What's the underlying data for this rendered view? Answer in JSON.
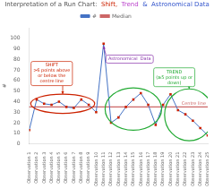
{
  "chart_data": {
    "type": "line",
    "title_parts": [
      {
        "text": "Interpretation of a Run Chart:  ",
        "color": "#555555"
      },
      {
        "text": "Shift,",
        "color": "#cc2200"
      },
      {
        "text": "  Trend",
        "color": "#bb44cc"
      },
      {
        "text": "  &  Astronomical Data",
        "color": "#3355cc"
      }
    ],
    "y_label": "#",
    "categories": [
      "Observation 1",
      "Observation 2",
      "Observation 3",
      "Observation 4",
      "Observation 5",
      "Observation 6",
      "Observation 7",
      "Observation 8",
      "Observation 9",
      "Observation 10",
      "Observation 11",
      "Observation 12",
      "Observation 13",
      "Observation 14",
      "Observation 15",
      "Observation 16",
      "Observation 17",
      "Observation 18",
      "Observation 19",
      "Observation 20",
      "Observation 21",
      "Observation 22",
      "Observation 23",
      "Observation 24",
      "Observation 25"
    ],
    "series": [
      {
        "name": "#",
        "color": "#4472c4",
        "marker": "square",
        "colors": [
          "#cc2200",
          "#cc2200",
          "#cc2200",
          "#cc2200",
          "#cc2200",
          "#cc2200",
          "#cc2200",
          "#cc2200",
          "#cc2200",
          "#cc2200",
          "#cc2200",
          "#cc2200",
          "#cc2200",
          "#cc2200",
          "#cc2200",
          "#cc2200",
          "#cc2200",
          "#cc2200",
          "#cc2200",
          "#cc2200",
          "#cc2200",
          "#cc2200",
          "#cc2200",
          "#cc2200",
          "#cc2200"
        ],
        "values": [
          13,
          42,
          38,
          37,
          40,
          35,
          34,
          42,
          37,
          30,
          95,
          20,
          25,
          35,
          42,
          48,
          37,
          18,
          37,
          47,
          32,
          28,
          22,
          15,
          8
        ]
      }
    ],
    "reference_lines": [
      {
        "name": "Median",
        "value": 35,
        "color": "#cc6666",
        "label": "Centre line"
      }
    ],
    "annotations": [
      {
        "text": "SHIFT\n>6 points above\nor below the\ncentre line",
        "color": "#cc2200"
      },
      {
        "text": "Astronomical  Data",
        "color": "#8833aa"
      },
      {
        "text": "TREND\n(≥5 points up or\ndown)",
        "color": "#22aa33"
      }
    ],
    "ylim": [
      0,
      110
    ],
    "yticks": [
      0,
      10,
      20,
      30,
      40,
      50,
      60,
      70,
      80,
      90,
      100
    ],
    "grid": false,
    "legend": "top"
  }
}
